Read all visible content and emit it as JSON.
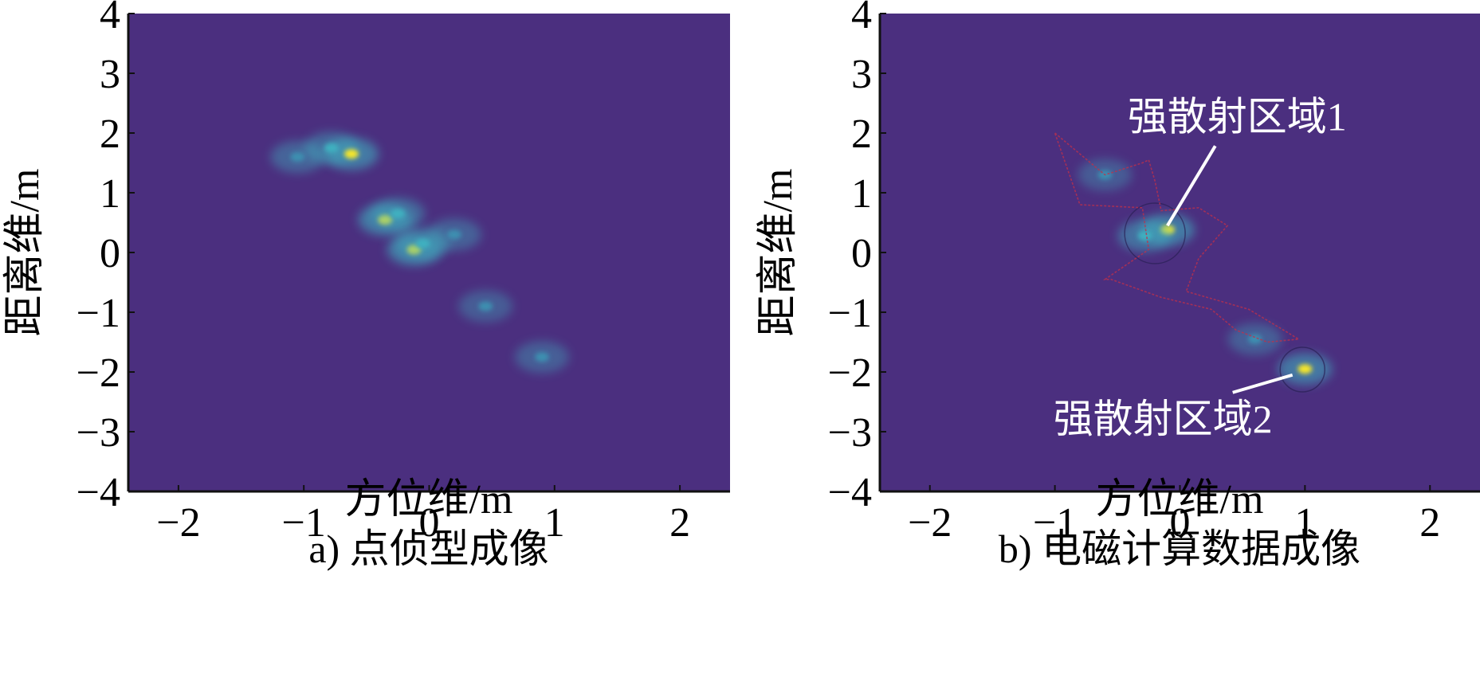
{
  "chart_data": [
    {
      "type": "heatmap",
      "caption": "a) 点侦型成像",
      "xlabel": "方位维/m",
      "ylabel": "距离维/m",
      "xlim": [
        -2.4,
        2.4
      ],
      "ylim": [
        -4,
        4
      ],
      "xticks": [
        -2,
        -1,
        0,
        1,
        2
      ],
      "yticks": [
        4,
        3,
        2,
        1,
        0,
        -1,
        -2,
        -3,
        -4
      ],
      "colormap": {
        "low": "#4b2f7f",
        "mid": "#3fb0c0",
        "high": "#f5e62a"
      },
      "hotspots": [
        {
          "x": -0.78,
          "y": 1.75,
          "intensity": 0.55
        },
        {
          "x": -0.62,
          "y": 1.65,
          "intensity": 0.95
        },
        {
          "x": -1.05,
          "y": 1.6,
          "intensity": 0.45
        },
        {
          "x": -0.35,
          "y": 0.55,
          "intensity": 0.95
        },
        {
          "x": -0.25,
          "y": 0.65,
          "intensity": 0.55
        },
        {
          "x": -0.12,
          "y": 0.05,
          "intensity": 0.95
        },
        {
          "x": -0.05,
          "y": 0.15,
          "intensity": 0.55
        },
        {
          "x": 0.2,
          "y": 0.3,
          "intensity": 0.4
        },
        {
          "x": 0.45,
          "y": -0.9,
          "intensity": 0.3
        },
        {
          "x": 0.9,
          "y": -1.75,
          "intensity": 0.35
        }
      ],
      "annotations": []
    },
    {
      "type": "heatmap",
      "caption": "b) 电磁计算数据成像",
      "xlabel": "方位维/m",
      "ylabel": "距离维/m",
      "xlim": [
        -2.4,
        2.4
      ],
      "ylim": [
        -4,
        4
      ],
      "xticks": [
        -2,
        -1,
        0,
        1,
        2
      ],
      "yticks": [
        4,
        3,
        2,
        1,
        0,
        -1,
        -2,
        -3,
        -4
      ],
      "colormap": {
        "low": "#4b2f7f",
        "mid": "#3fb0c0",
        "high": "#f5e62a"
      },
      "hotspots": [
        {
          "x": -0.1,
          "y": 0.38,
          "intensity": 0.95
        },
        {
          "x": -0.28,
          "y": 0.28,
          "intensity": 0.75
        },
        {
          "x": 1.0,
          "y": -1.95,
          "intensity": 0.9
        },
        {
          "x": 0.6,
          "y": -1.45,
          "intensity": 0.35
        },
        {
          "x": -0.6,
          "y": 1.3,
          "intensity": 0.25
        }
      ],
      "annotations": [
        {
          "text": "强散射区域1",
          "target_x": -0.1,
          "target_y": 0.45
        },
        {
          "text": "强散射区域2",
          "target_x": 0.9,
          "target_y": -2.05
        }
      ],
      "outline": [
        [
          -1.0,
          2.0
        ],
        [
          -0.6,
          1.3
        ],
        [
          -0.3,
          1.5
        ],
        [
          -0.25,
          1.55
        ],
        [
          -0.2,
          1.2
        ],
        [
          -0.15,
          0.7
        ],
        [
          0.15,
          0.75
        ],
        [
          0.38,
          0.45
        ],
        [
          0.15,
          -0.1
        ],
        [
          0.05,
          -0.65
        ],
        [
          0.55,
          -0.95
        ],
        [
          0.95,
          -1.45
        ],
        [
          0.7,
          -1.5
        ],
        [
          0.45,
          -1.3
        ],
        [
          0.25,
          -0.95
        ],
        [
          -0.15,
          -0.75
        ],
        [
          -0.55,
          -0.45
        ],
        [
          -0.6,
          -0.45
        ],
        [
          -0.25,
          0.05
        ],
        [
          -0.3,
          0.75
        ],
        [
          -0.8,
          0.8
        ],
        [
          -0.85,
          1.1
        ],
        [
          -1.0,
          2.0
        ]
      ]
    }
  ]
}
